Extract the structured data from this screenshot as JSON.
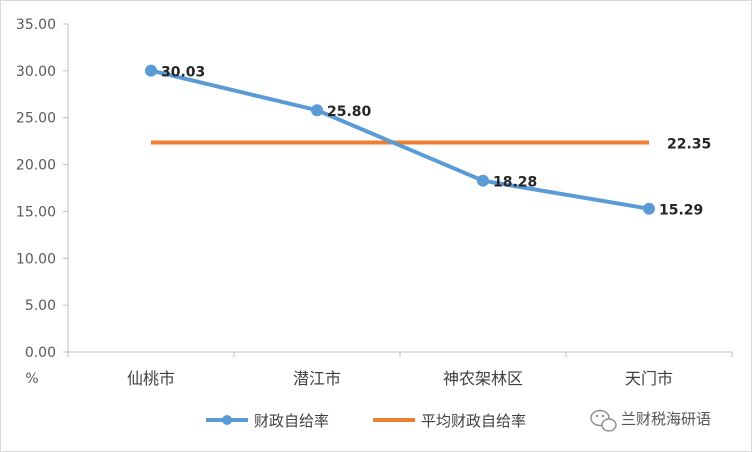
{
  "chart_data": {
    "type": "line",
    "categories": [
      "仙桃市",
      "潜江市",
      "神农架林区",
      "天门市"
    ],
    "series": [
      {
        "name": "财政自给率",
        "values": [
          30.03,
          25.8,
          18.28,
          15.29
        ],
        "color": "#5B9BD5",
        "data_labels": [
          "30.03",
          "25.80",
          "18.28",
          "15.29"
        ]
      },
      {
        "name": "平均财政自给率",
        "values": [
          22.35,
          22.35,
          22.35,
          22.35
        ],
        "color": "#ED7D31",
        "data_labels": [
          "22.35"
        ]
      }
    ],
    "ylabel": "%",
    "ylim": [
      0,
      35
    ],
    "y_ticks": [
      "0.00",
      "5.00",
      "10.00",
      "15.00",
      "20.00",
      "25.00",
      "30.00",
      "35.00"
    ],
    "grid": false,
    "legend_position": "bottom"
  },
  "watermark": {
    "text": "兰财税海研语",
    "icon": "wechat-icon"
  }
}
